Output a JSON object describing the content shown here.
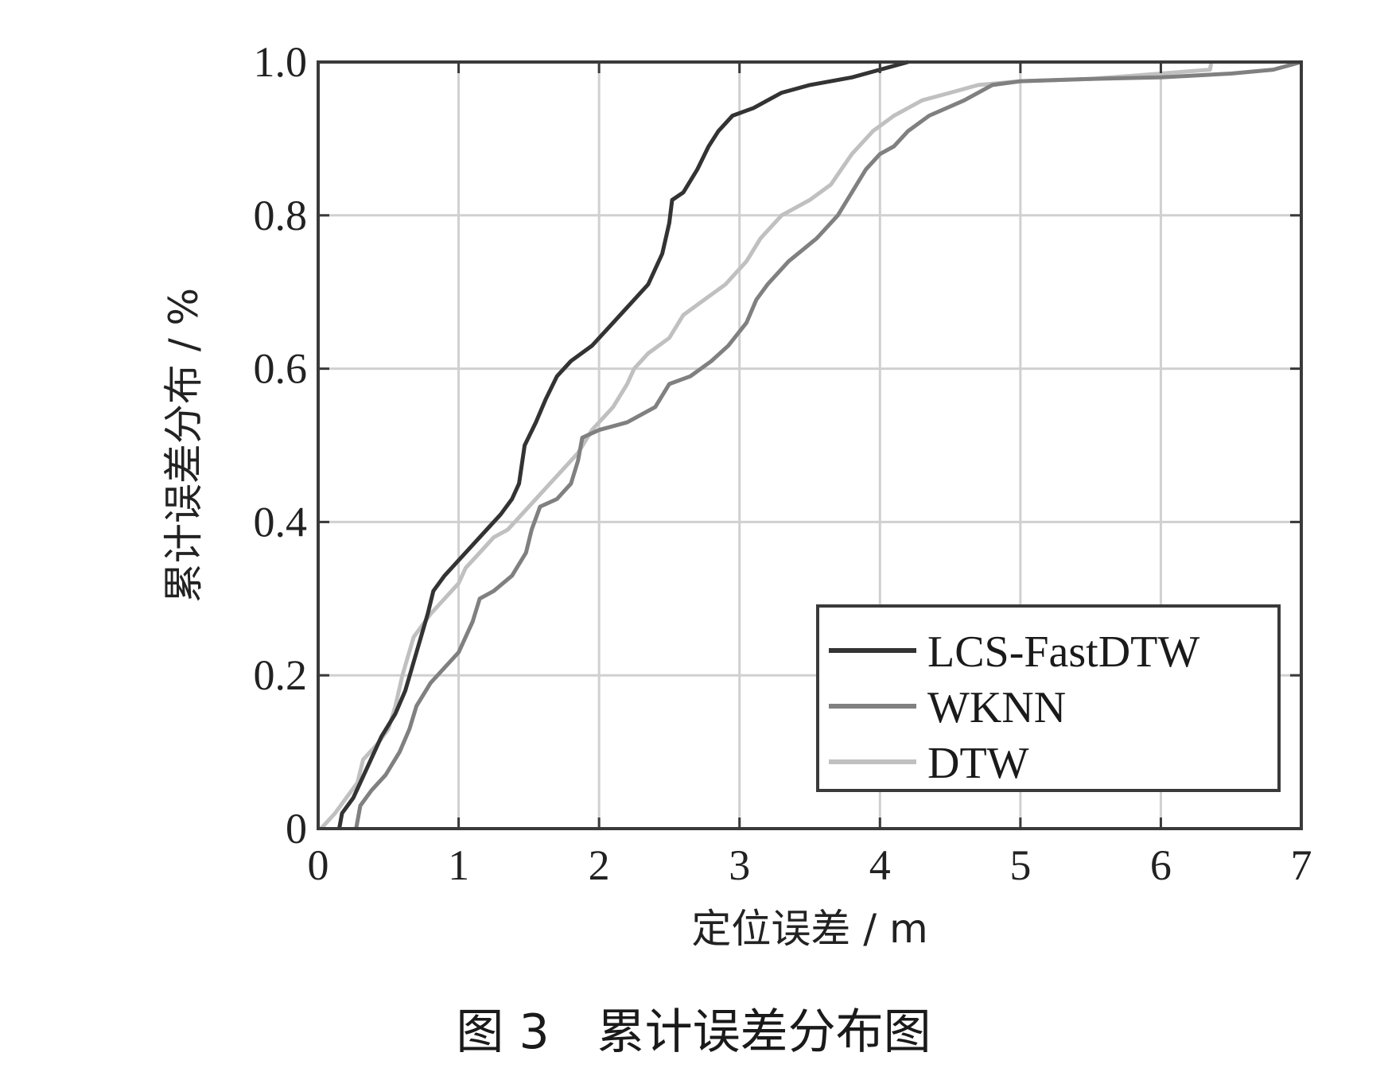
{
  "figure": {
    "caption": "图 3　累计误差分布图"
  },
  "chart_data": {
    "type": "line",
    "xlabel": "定位误差 / m",
    "ylabel": "累计误差分布 / %",
    "xlim": [
      0,
      7
    ],
    "ylim": [
      0,
      1.0
    ],
    "xticks": [
      0,
      1,
      2,
      3,
      4,
      5,
      6,
      7
    ],
    "xtick_labels": [
      "0",
      "1",
      "2",
      "3",
      "4",
      "5",
      "6",
      "7"
    ],
    "yticks": [
      0,
      0.2,
      0.4,
      0.6,
      0.8,
      1.0
    ],
    "ytick_labels": [
      "0",
      "0.2",
      "0.4",
      "0.6",
      "0.8",
      "1.0"
    ],
    "grid": true,
    "legend_position": "bottom-right",
    "series": [
      {
        "name": "LCS-FastDTW",
        "color": "#333333",
        "points": [
          [
            0.15,
            0
          ],
          [
            0.17,
            0.02
          ],
          [
            0.25,
            0.04
          ],
          [
            0.35,
            0.08
          ],
          [
            0.45,
            0.12
          ],
          [
            0.55,
            0.15
          ],
          [
            0.62,
            0.18
          ],
          [
            0.7,
            0.23
          ],
          [
            0.78,
            0.28
          ],
          [
            0.82,
            0.31
          ],
          [
            0.9,
            0.33
          ],
          [
            1.0,
            0.35
          ],
          [
            1.1,
            0.37
          ],
          [
            1.2,
            0.39
          ],
          [
            1.3,
            0.41
          ],
          [
            1.38,
            0.43
          ],
          [
            1.43,
            0.45
          ],
          [
            1.47,
            0.5
          ],
          [
            1.55,
            0.53
          ],
          [
            1.62,
            0.56
          ],
          [
            1.7,
            0.59
          ],
          [
            1.8,
            0.61
          ],
          [
            1.95,
            0.63
          ],
          [
            2.05,
            0.65
          ],
          [
            2.2,
            0.68
          ],
          [
            2.35,
            0.71
          ],
          [
            2.45,
            0.75
          ],
          [
            2.5,
            0.79
          ],
          [
            2.52,
            0.82
          ],
          [
            2.6,
            0.83
          ],
          [
            2.7,
            0.86
          ],
          [
            2.78,
            0.89
          ],
          [
            2.85,
            0.91
          ],
          [
            2.95,
            0.93
          ],
          [
            3.1,
            0.94
          ],
          [
            3.2,
            0.95
          ],
          [
            3.3,
            0.96
          ],
          [
            3.5,
            0.97
          ],
          [
            3.8,
            0.98
          ],
          [
            4.0,
            0.99
          ],
          [
            4.1,
            0.995
          ],
          [
            4.2,
            1.0
          ]
        ]
      },
      {
        "name": "WKNN",
        "color": "#808080",
        "points": [
          [
            0.27,
            0
          ],
          [
            0.3,
            0.03
          ],
          [
            0.38,
            0.05
          ],
          [
            0.48,
            0.07
          ],
          [
            0.58,
            0.1
          ],
          [
            0.65,
            0.13
          ],
          [
            0.7,
            0.16
          ],
          [
            0.8,
            0.19
          ],
          [
            0.9,
            0.21
          ],
          [
            1.0,
            0.23
          ],
          [
            1.1,
            0.27
          ],
          [
            1.15,
            0.3
          ],
          [
            1.25,
            0.31
          ],
          [
            1.38,
            0.33
          ],
          [
            1.48,
            0.36
          ],
          [
            1.52,
            0.39
          ],
          [
            1.58,
            0.42
          ],
          [
            1.7,
            0.43
          ],
          [
            1.8,
            0.45
          ],
          [
            1.85,
            0.48
          ],
          [
            1.88,
            0.51
          ],
          [
            2.0,
            0.52
          ],
          [
            2.2,
            0.53
          ],
          [
            2.4,
            0.55
          ],
          [
            2.5,
            0.58
          ],
          [
            2.65,
            0.59
          ],
          [
            2.8,
            0.61
          ],
          [
            2.92,
            0.63
          ],
          [
            3.05,
            0.66
          ],
          [
            3.12,
            0.69
          ],
          [
            3.2,
            0.71
          ],
          [
            3.35,
            0.74
          ],
          [
            3.55,
            0.77
          ],
          [
            3.7,
            0.8
          ],
          [
            3.8,
            0.83
          ],
          [
            3.9,
            0.86
          ],
          [
            4.0,
            0.88
          ],
          [
            4.1,
            0.89
          ],
          [
            4.2,
            0.91
          ],
          [
            4.35,
            0.93
          ],
          [
            4.6,
            0.95
          ],
          [
            4.8,
            0.97
          ],
          [
            5.0,
            0.975
          ],
          [
            5.5,
            0.978
          ],
          [
            6.0,
            0.98
          ],
          [
            6.5,
            0.985
          ],
          [
            6.8,
            0.99
          ],
          [
            7.0,
            1.0
          ]
        ]
      },
      {
        "name": "DTW",
        "color": "#c0c0c0",
        "points": [
          [
            0.02,
            0
          ],
          [
            0.12,
            0.02
          ],
          [
            0.2,
            0.04
          ],
          [
            0.28,
            0.06
          ],
          [
            0.32,
            0.09
          ],
          [
            0.42,
            0.11
          ],
          [
            0.5,
            0.13
          ],
          [
            0.55,
            0.16
          ],
          [
            0.6,
            0.2
          ],
          [
            0.68,
            0.25
          ],
          [
            0.8,
            0.28
          ],
          [
            0.9,
            0.3
          ],
          [
            1.0,
            0.32
          ],
          [
            1.05,
            0.34
          ],
          [
            1.15,
            0.36
          ],
          [
            1.25,
            0.38
          ],
          [
            1.35,
            0.39
          ],
          [
            1.45,
            0.41
          ],
          [
            1.55,
            0.43
          ],
          [
            1.65,
            0.45
          ],
          [
            1.75,
            0.47
          ],
          [
            1.85,
            0.49
          ],
          [
            1.95,
            0.52
          ],
          [
            2.1,
            0.55
          ],
          [
            2.2,
            0.58
          ],
          [
            2.25,
            0.6
          ],
          [
            2.35,
            0.62
          ],
          [
            2.5,
            0.64
          ],
          [
            2.6,
            0.67
          ],
          [
            2.75,
            0.69
          ],
          [
            2.9,
            0.71
          ],
          [
            3.05,
            0.74
          ],
          [
            3.15,
            0.77
          ],
          [
            3.3,
            0.8
          ],
          [
            3.5,
            0.82
          ],
          [
            3.65,
            0.84
          ],
          [
            3.8,
            0.88
          ],
          [
            3.95,
            0.91
          ],
          [
            4.1,
            0.93
          ],
          [
            4.3,
            0.95
          ],
          [
            4.5,
            0.96
          ],
          [
            4.7,
            0.97
          ],
          [
            5.0,
            0.975
          ],
          [
            5.5,
            0.978
          ],
          [
            6.0,
            0.985
          ],
          [
            6.35,
            0.99
          ],
          [
            6.36,
            1.0
          ]
        ]
      }
    ]
  }
}
